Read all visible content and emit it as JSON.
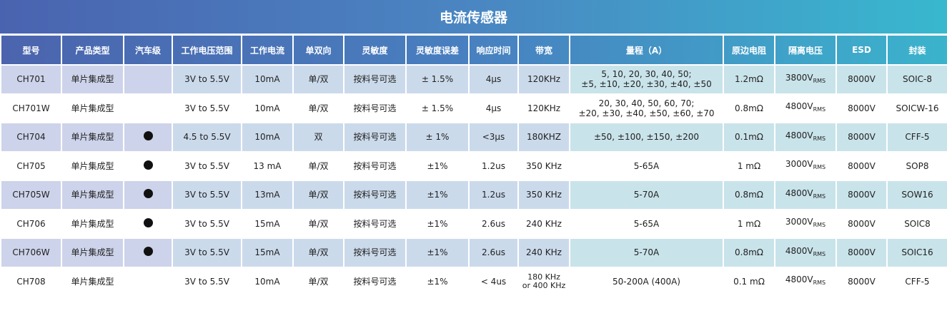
{
  "title": "电流传感器",
  "columns": [
    "型号",
    "产品类型",
    "汽车级",
    "工作电压范围",
    "工作电流",
    "单双向",
    "灵敏度",
    "灵敏度误差",
    "响应时间",
    "带宽",
    "量程（A）",
    "原边电阻",
    "隔离电压",
    "ESD",
    "封装"
  ],
  "automotive_marker": "dot-icon",
  "rows": [
    {
      "model": "CH701",
      "type": "单片集成型",
      "auto": false,
      "voltage": "3V to 5.5V",
      "current": "10mA",
      "direction": "单/双",
      "sensitivity": "按料号可选",
      "error": "± 1.5%",
      "response": "4µs",
      "bandwidth": [
        "120KHz"
      ],
      "range": [
        "5, 10, 20, 30, 40, 50;",
        "±5, ±10, ±20, ±30, ±40, ±50"
      ],
      "resistance": "1.2mΩ",
      "iso_value": "3800V",
      "iso_sub": "RMS",
      "esd": "8000V",
      "package": "SOIC-8"
    },
    {
      "model": "CH701W",
      "type": "单片集成型",
      "auto": false,
      "voltage": "3V to 5.5V",
      "current": "10mA",
      "direction": "单/双",
      "sensitivity": "按料号可选",
      "error": "± 1.5%",
      "response": "4µs",
      "bandwidth": [
        "120KHz"
      ],
      "range": [
        "20, 30, 40, 50, 60, 70;",
        "±20, ±30, ±40, ±50, ±60, ±70"
      ],
      "resistance": "0.8mΩ",
      "iso_value": "4800V",
      "iso_sub": "RMS",
      "esd": "8000V",
      "package": "SOICW-16"
    },
    {
      "model": "CH704",
      "type": "单片集成型",
      "auto": true,
      "voltage": "4.5 to 5.5V",
      "current": "10mA",
      "direction": "双",
      "sensitivity": "按料号可选",
      "error": "± 1%",
      "response": "<3µs",
      "bandwidth": [
        "180KHZ"
      ],
      "range": [
        "±50, ±100, ±150, ±200"
      ],
      "resistance": "0.1mΩ",
      "iso_value": "4800V",
      "iso_sub": "RMS",
      "esd": "8000V",
      "package": "CFF-5"
    },
    {
      "model": "CH705",
      "type": "单片集成型",
      "auto": true,
      "voltage": "3V to 5.5V",
      "current": "13 mA",
      "direction": "单/双",
      "sensitivity": "按料号可选",
      "error": "±1%",
      "response": "1.2us",
      "bandwidth": [
        "350 KHz"
      ],
      "range": [
        "5-65A"
      ],
      "resistance": "1 mΩ",
      "iso_value": "3000V",
      "iso_sub": "RMS",
      "esd": "8000V",
      "package": "SOP8"
    },
    {
      "model": "CH705W",
      "type": "单片集成型",
      "auto": true,
      "voltage": "3V to 5.5V",
      "current": "13mA",
      "direction": "单/双",
      "sensitivity": "按料号可选",
      "error": "±1%",
      "response": "1.2us",
      "bandwidth": [
        "350 KHz"
      ],
      "range": [
        "5-70A"
      ],
      "resistance": "0.8mΩ",
      "iso_value": "4800V",
      "iso_sub": "RMS",
      "esd": "8000V",
      "package": "SOW16"
    },
    {
      "model": "CH706",
      "type": "单片集成型",
      "auto": true,
      "voltage": "3V to 5.5V",
      "current": "15mA",
      "direction": "单/双",
      "sensitivity": "按料号可选",
      "error": "±1%",
      "response": "2.6us",
      "bandwidth": [
        "240 KHz"
      ],
      "range": [
        "5-65A"
      ],
      "resistance": "1 mΩ",
      "iso_value": "3000V",
      "iso_sub": "RMS",
      "esd": "8000V",
      "package": "SOIC8"
    },
    {
      "model": "CH706W",
      "type": "单片集成型",
      "auto": true,
      "voltage": "3V to 5.5V",
      "current": "15mA",
      "direction": "单/双",
      "sensitivity": "按料号可选",
      "error": "±1%",
      "response": "2.6us",
      "bandwidth": [
        "240 KHz"
      ],
      "range": [
        "5-70A"
      ],
      "resistance": "0.8mΩ",
      "iso_value": "4800V",
      "iso_sub": "RMS",
      "esd": "8000V",
      "package": "SOIC16"
    },
    {
      "model": "CH708",
      "type": "单片集成型",
      "auto": false,
      "voltage": "3V to 5.5V",
      "current": "10mA",
      "direction": "单/双",
      "sensitivity": "按料号可选",
      "error": "±1%",
      "response": "< 4us",
      "bandwidth": [
        "180 KHz",
        "or 400 KHz"
      ],
      "range": [
        "50-200A (400A)"
      ],
      "resistance": "0.1 mΩ",
      "iso_value": "4800V",
      "iso_sub": "RMS",
      "esd": "8000V",
      "package": "CFF-5"
    }
  ]
}
